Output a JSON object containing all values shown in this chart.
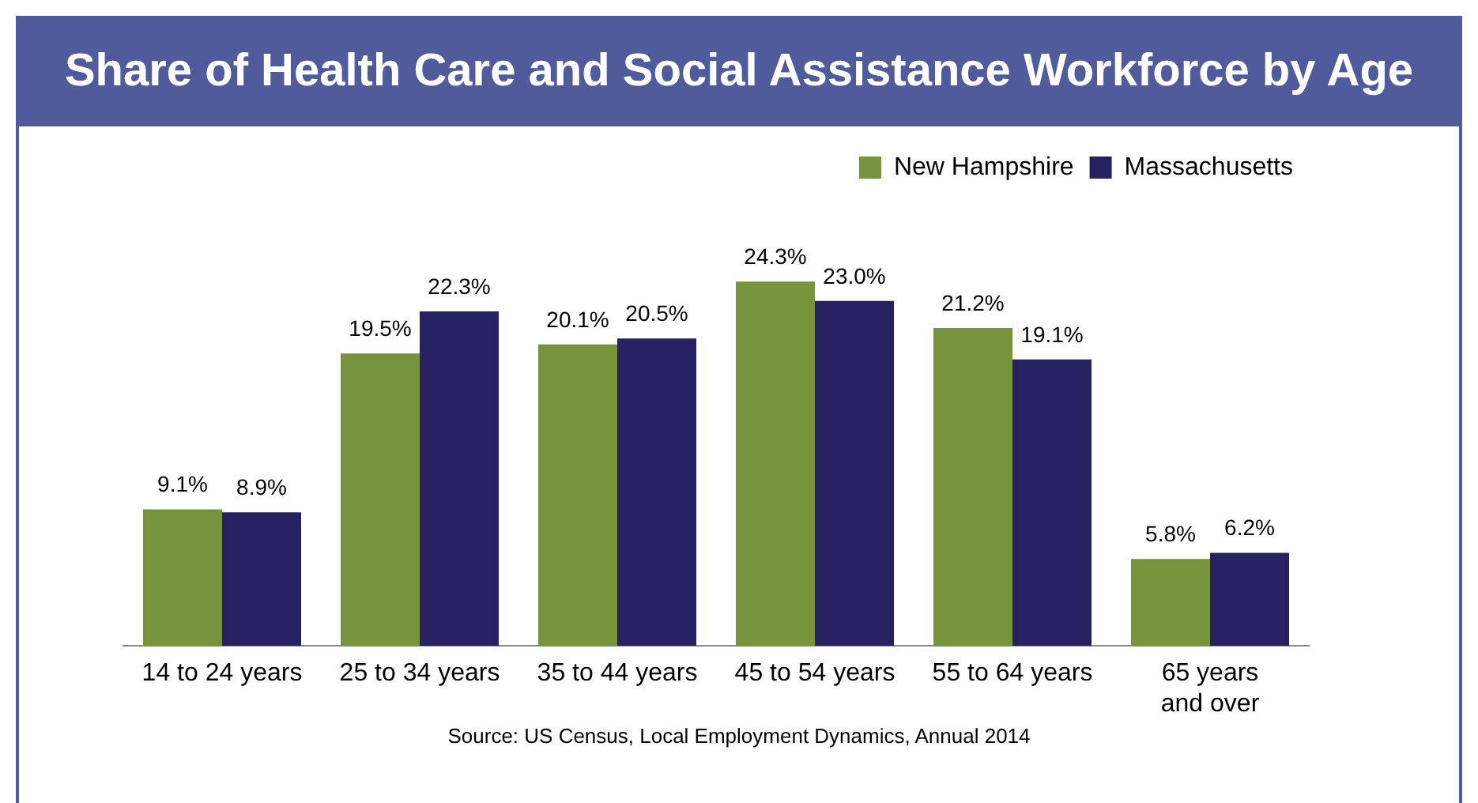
{
  "chart_data": {
    "type": "bar",
    "title": "Share of Health Care and Social Assistance Workforce by Age",
    "categories": [
      "14 to 24 years",
      "25 to 34 years",
      "35 to 44 years",
      "45 to 54 years",
      "55 to 64 years",
      "65 years\nand over"
    ],
    "series": [
      {
        "name": "New Hampshire",
        "color": "#77933c",
        "values": [
          9.1,
          19.5,
          20.1,
          24.3,
          21.2,
          5.8
        ],
        "value_labels": [
          "9.1%",
          "19.5%",
          "20.1%",
          "24.3%",
          "21.2%",
          "5.8%"
        ]
      },
      {
        "name": "Massachusetts",
        "color": "#262262",
        "values": [
          8.9,
          22.3,
          20.5,
          23.0,
          19.1,
          6.2
        ],
        "value_labels": [
          "8.9%",
          "22.3%",
          "20.5%",
          "23.0%",
          "19.1%",
          "6.2%"
        ]
      }
    ],
    "legend": "top right",
    "grid": false,
    "annotations": [
      "Source: US Census,  Local Employment Dynamics,  Annual 2014"
    ]
  }
}
